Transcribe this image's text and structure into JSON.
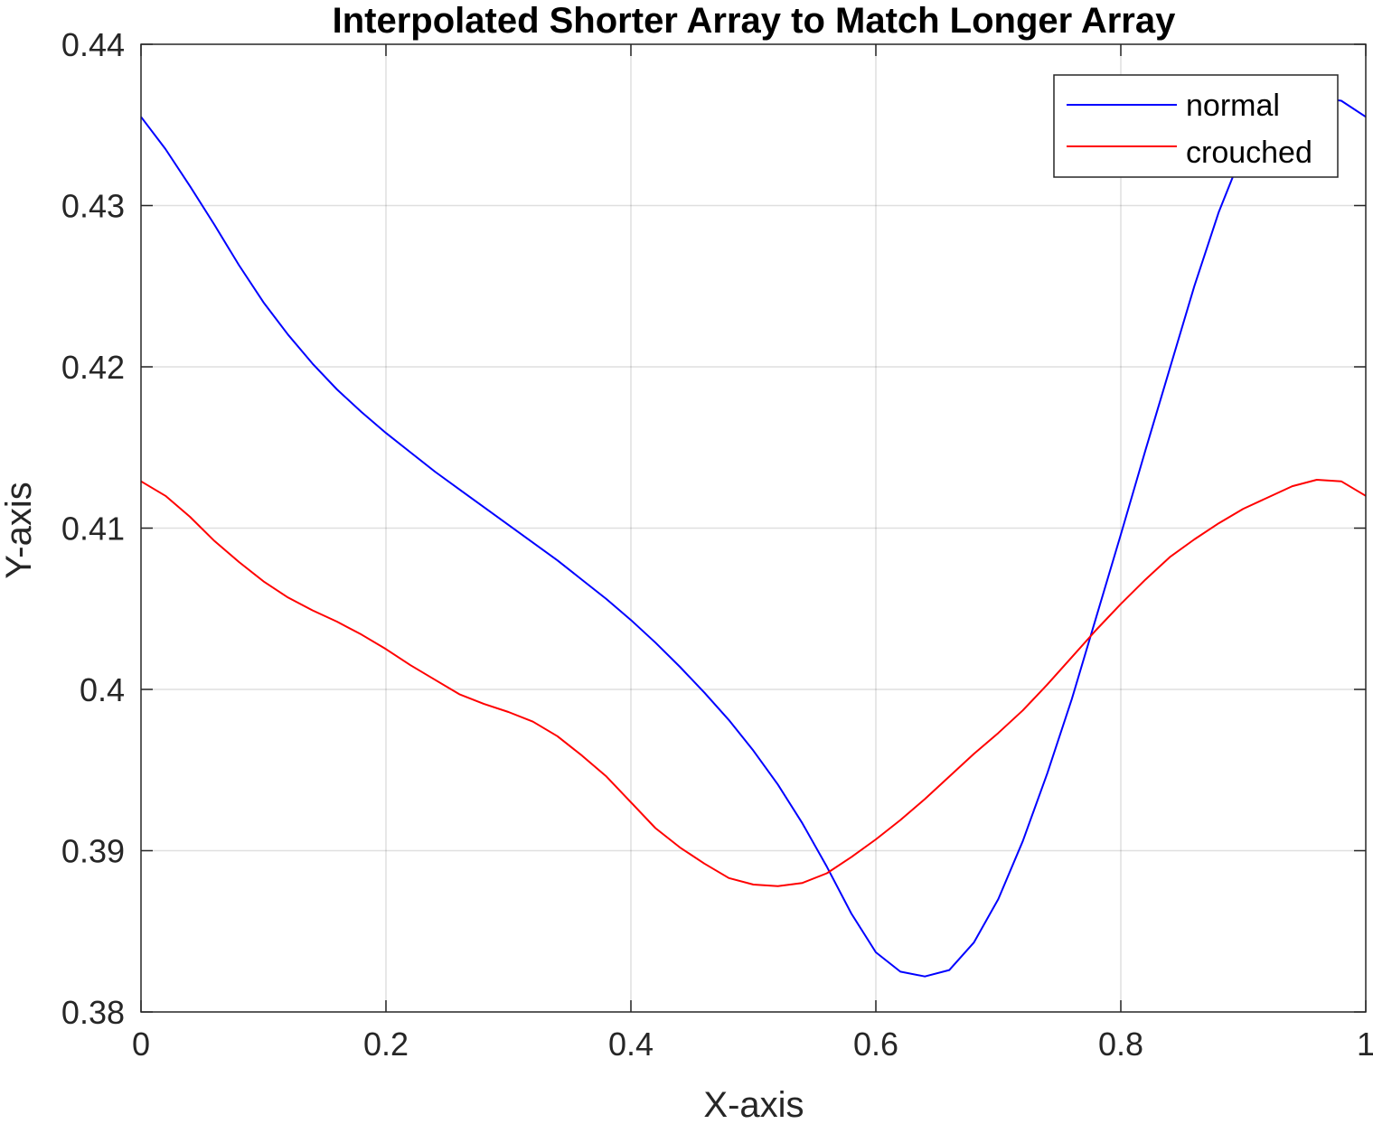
{
  "chart_data": {
    "type": "line",
    "title": "Interpolated Shorter Array to Match Longer Array",
    "xlabel": "X-axis",
    "ylabel": "Y-axis",
    "xlim": [
      0,
      1
    ],
    "ylim": [
      0.38,
      0.44
    ],
    "x_ticks": [
      0,
      0.2,
      0.4,
      0.6,
      0.8,
      1
    ],
    "x_tick_labels": [
      "0",
      "0.2",
      "0.4",
      "0.6",
      "0.8",
      "1"
    ],
    "y_ticks": [
      0.38,
      0.39,
      0.4,
      0.41,
      0.42,
      0.43,
      0.44
    ],
    "y_tick_labels": [
      "0.38",
      "0.39",
      "0.4",
      "0.41",
      "0.42",
      "0.43",
      "0.44"
    ],
    "grid": true,
    "legend_position": "top-right",
    "x": [
      0,
      0.02,
      0.04,
      0.06,
      0.08,
      0.1,
      0.12,
      0.14,
      0.16,
      0.18,
      0.2,
      0.22,
      0.24,
      0.26,
      0.28,
      0.3,
      0.32,
      0.34,
      0.36,
      0.38,
      0.4,
      0.42,
      0.44,
      0.46,
      0.48,
      0.5,
      0.52,
      0.54,
      0.56,
      0.58,
      0.6,
      0.62,
      0.64,
      0.66,
      0.68,
      0.7,
      0.72,
      0.74,
      0.76,
      0.78,
      0.8,
      0.82,
      0.84,
      0.86,
      0.88,
      0.9,
      0.92,
      0.94,
      0.96,
      0.98,
      1
    ],
    "series": [
      {
        "name": "normal",
        "color": "#0000ff",
        "values": [
          0.4355,
          0.4335,
          0.4312,
          0.4288,
          0.4263,
          0.424,
          0.422,
          0.4202,
          0.4186,
          0.4172,
          0.4159,
          0.4147,
          0.4135,
          0.4124,
          0.4113,
          0.4102,
          0.4091,
          0.408,
          0.4068,
          0.4056,
          0.4043,
          0.4029,
          0.4014,
          0.3998,
          0.3981,
          0.3962,
          0.3941,
          0.3917,
          0.389,
          0.3861,
          0.3837,
          0.3825,
          0.3822,
          0.3826,
          0.3843,
          0.387,
          0.3906,
          0.3948,
          0.3994,
          0.4045,
          0.4096,
          0.4148,
          0.4199,
          0.425,
          0.4296,
          0.4334,
          0.4358,
          0.4365,
          0.4367,
          0.4365,
          0.4355
        ]
      },
      {
        "name": "crouched",
        "color": "#ff0000",
        "values": [
          0.4129,
          0.412,
          0.4107,
          0.4092,
          0.4079,
          0.4067,
          0.4057,
          0.4049,
          0.4042,
          0.4034,
          0.4025,
          0.4015,
          0.4006,
          0.3997,
          0.3991,
          0.3986,
          0.398,
          0.3971,
          0.3959,
          0.3946,
          0.393,
          0.3914,
          0.3902,
          0.3892,
          0.3883,
          0.3879,
          0.3878,
          0.388,
          0.3886,
          0.3896,
          0.3907,
          0.3919,
          0.3932,
          0.3946,
          0.396,
          0.3973,
          0.3987,
          0.4003,
          0.402,
          0.4037,
          0.4053,
          0.4068,
          0.4082,
          0.4093,
          0.4103,
          0.4112,
          0.4119,
          0.4126,
          0.413,
          0.4129,
          0.412
        ]
      }
    ]
  }
}
